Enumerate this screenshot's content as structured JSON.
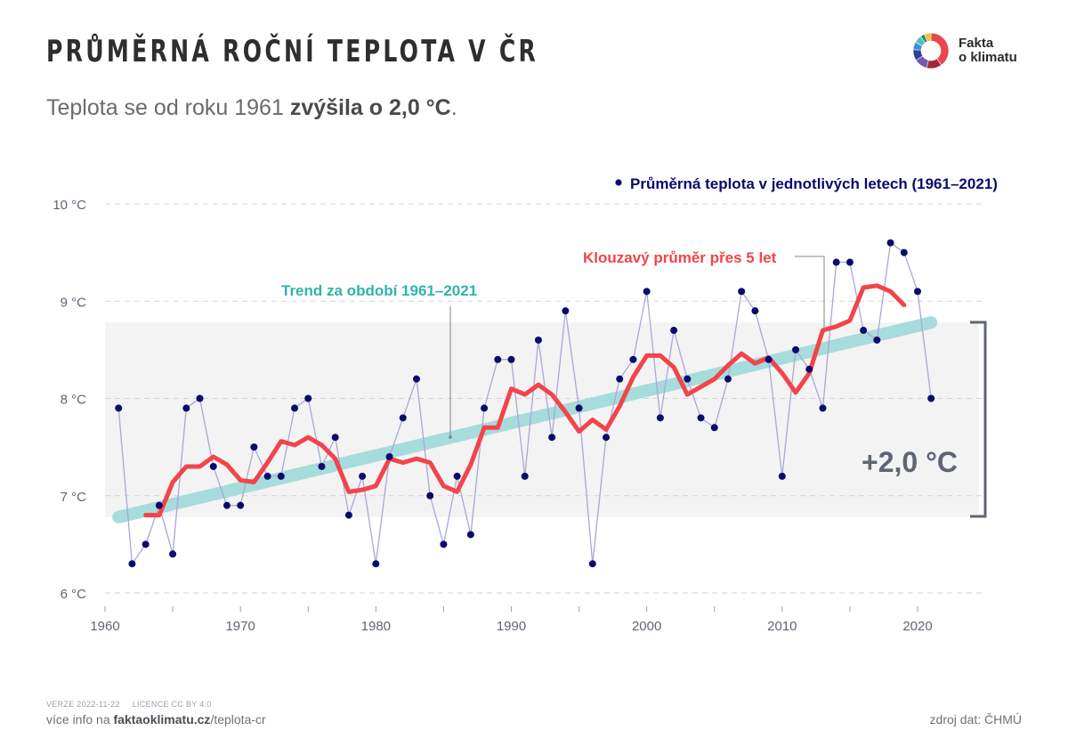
{
  "header": {
    "title": "PRŮMĚRNÁ ROČNÍ TEPLOTA V ČR",
    "subtitle_pre": "Teplota se od roku 1961 ",
    "subtitle_bold": "zvýšila o 2,0 °C",
    "subtitle_post": "."
  },
  "logo": {
    "line1": "Fakta",
    "line2": "o klimatu",
    "icon": "donut-logo-icon",
    "ring_colors": [
      "#e8474c",
      "#a3283c",
      "#6f5bb0",
      "#2d3f9e",
      "#3a8fd3",
      "#4fc1b9",
      "#1f8f7a",
      "#f2c12e"
    ]
  },
  "colors": {
    "dots": "#0b0a6e",
    "annual_line": "#a9a8d6",
    "moving_avg": "#f2444a",
    "trend": "#a6dcdb",
    "band": "#f3f3f3",
    "bracket": "#5e6673",
    "axis_text": "#5e6673",
    "trend_label": "#2fb3ad"
  },
  "chart_data": {
    "type": "line",
    "title": "Průměrná roční teplota v ČR",
    "xlabel": "",
    "ylabel": "",
    "xlim": [
      1960,
      2025
    ],
    "ylim": [
      6,
      10
    ],
    "x_ticks": [
      1960,
      1970,
      1980,
      1990,
      2000,
      2010,
      2020
    ],
    "x_minor_ticks": [
      1965,
      1975,
      1985,
      1995,
      2005,
      2015
    ],
    "y_ticks": [
      6,
      7,
      8,
      9,
      10
    ],
    "y_tick_labels": [
      "6 °C",
      "7 °C",
      "8 °C",
      "9 °C",
      "10 °C"
    ],
    "grid": "horizontal-dashed",
    "series": [
      {
        "name": "Průměrná teplota v jednotlivých letech (1961–2021)",
        "type": "line+markers",
        "x": [
          1961,
          1962,
          1963,
          1964,
          1965,
          1966,
          1967,
          1968,
          1969,
          1970,
          1971,
          1972,
          1973,
          1974,
          1975,
          1976,
          1977,
          1978,
          1979,
          1980,
          1981,
          1982,
          1983,
          1984,
          1985,
          1986,
          1987,
          1988,
          1989,
          1990,
          1991,
          1992,
          1993,
          1994,
          1995,
          1996,
          1997,
          1998,
          1999,
          2000,
          2001,
          2002,
          2003,
          2004,
          2005,
          2006,
          2007,
          2008,
          2009,
          2010,
          2011,
          2012,
          2013,
          2014,
          2015,
          2016,
          2017,
          2018,
          2019,
          2020,
          2021
        ],
        "values": [
          7.9,
          6.3,
          6.5,
          6.9,
          6.4,
          7.9,
          8.0,
          7.3,
          6.9,
          6.9,
          7.5,
          7.2,
          7.2,
          7.9,
          8.0,
          7.3,
          7.6,
          6.8,
          7.2,
          6.3,
          7.4,
          7.8,
          8.2,
          7.0,
          6.5,
          7.2,
          6.6,
          7.9,
          8.4,
          8.4,
          7.2,
          8.6,
          7.6,
          8.9,
          7.9,
          6.3,
          7.6,
          8.2,
          8.4,
          9.1,
          7.8,
          8.7,
          8.2,
          7.8,
          7.7,
          8.2,
          9.1,
          8.9,
          8.4,
          7.2,
          8.5,
          8.3,
          7.9,
          9.4,
          9.4,
          8.7,
          8.6,
          9.6,
          9.5,
          9.1,
          8.0
        ]
      },
      {
        "name": "Klouzavý průměr přes 5 let",
        "type": "moving_average",
        "window": 5,
        "x_range": [
          1963,
          2019
        ]
      },
      {
        "name": "Trend za období 1961–2021",
        "type": "linear_trend",
        "x": [
          1961,
          2021
        ],
        "values": [
          6.78,
          8.78
        ]
      }
    ],
    "annotations": {
      "legend_dots": "Průměrná teplota v jednotlivých letech (1961–2021)",
      "moving_avg_label": "Klouzavý průměr přes 5 let",
      "trend_label": "Trend za období 1961–2021",
      "increase_label": "+2,0 °C",
      "band_range": [
        6.78,
        8.78
      ]
    }
  },
  "footer": {
    "version": "VERZE 2022-11-22",
    "license": "LICENCE CC BY 4.0",
    "more_info_pre": "více info na ",
    "more_info_bold": "faktaoklimatu.cz",
    "more_info_post": "/teplota-cr",
    "source": "zdroj dat: ČHMÚ"
  }
}
